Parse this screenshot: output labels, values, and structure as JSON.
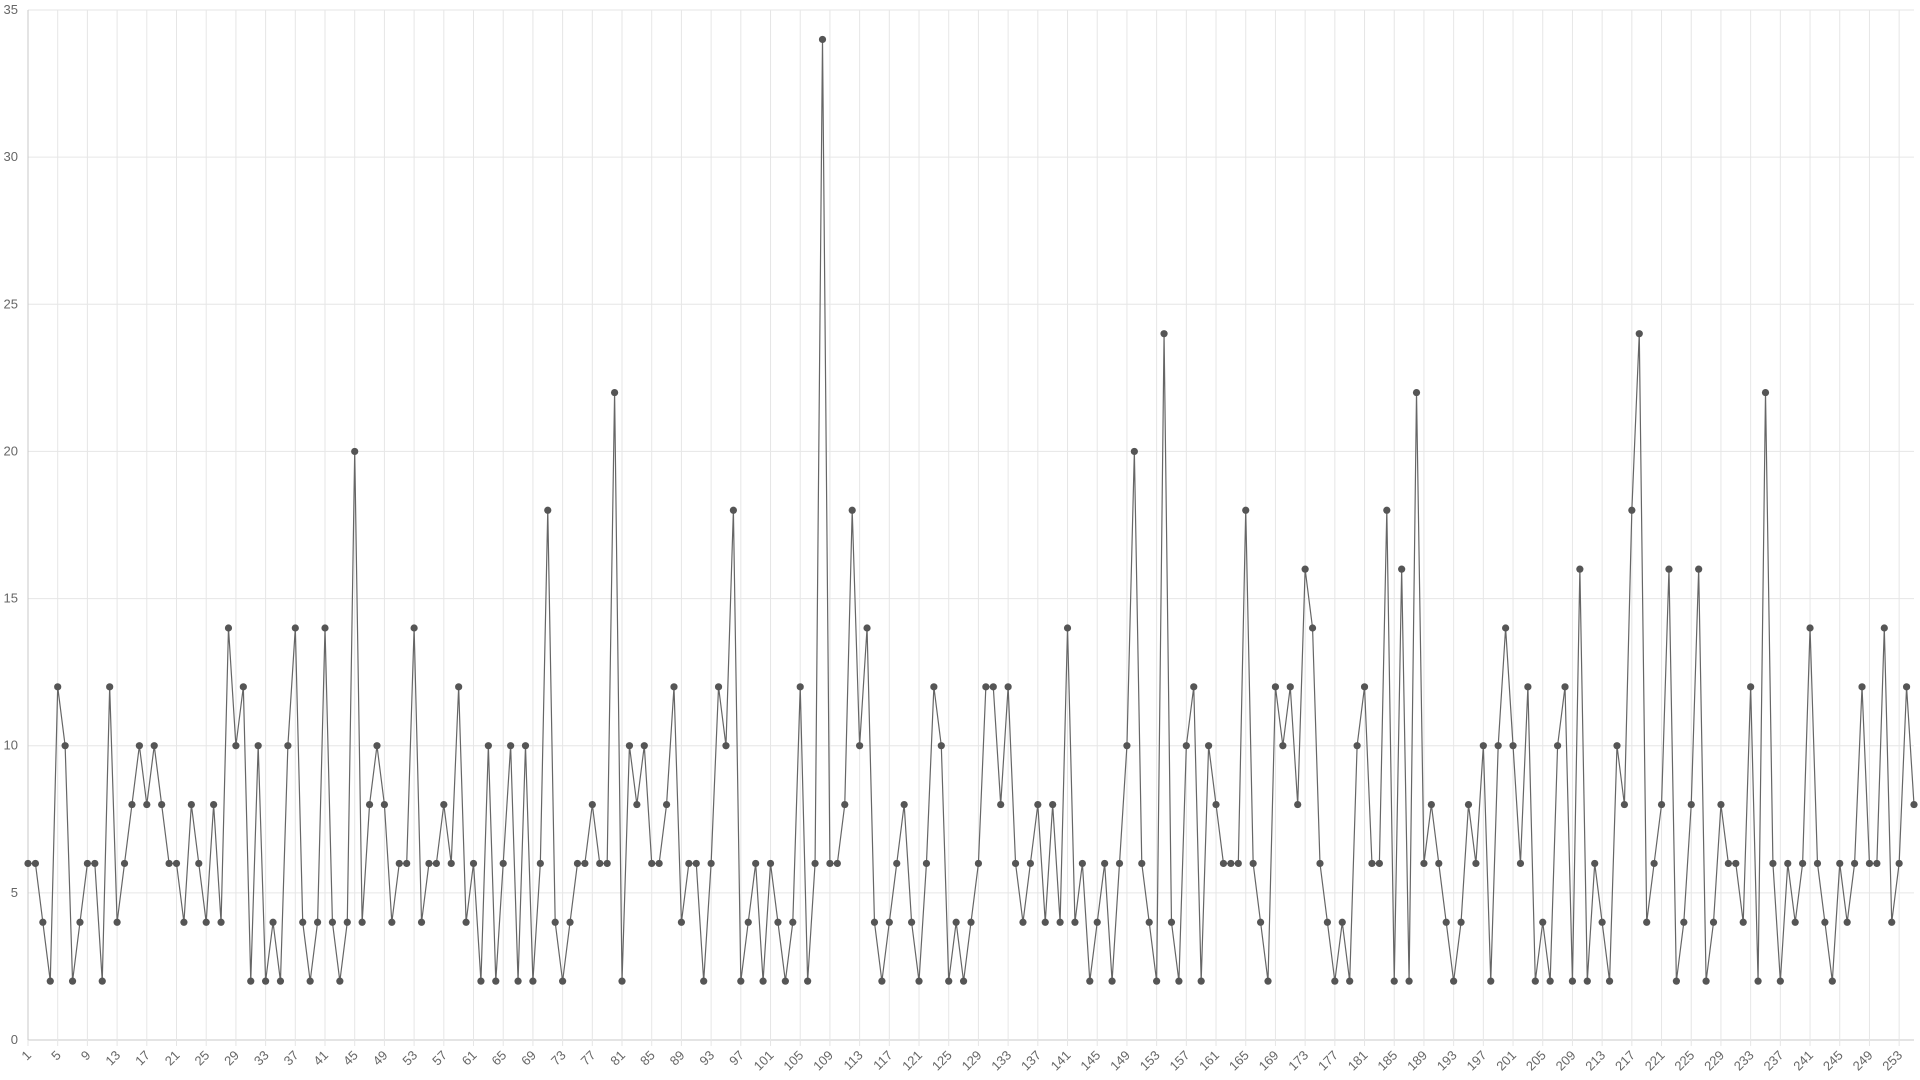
{
  "chart_data": {
    "type": "line",
    "categories": [
      "1",
      null,
      null,
      null,
      "5",
      null,
      null,
      null,
      "9",
      null,
      null,
      null,
      "13",
      null,
      null,
      null,
      "17",
      null,
      null,
      null,
      "21",
      null,
      null,
      null,
      "25",
      null,
      null,
      null,
      "29",
      null,
      null,
      null,
      "33",
      null,
      null,
      null,
      "37",
      null,
      null,
      null,
      "41",
      null,
      null,
      null,
      "45",
      null,
      null,
      null,
      "49",
      null,
      null,
      null,
      "53",
      null,
      null,
      null,
      "57",
      null,
      null,
      null,
      "61",
      null,
      null,
      null,
      "65",
      null,
      null,
      null,
      "69",
      null,
      null,
      null,
      "73",
      null,
      null,
      null,
      "77",
      null,
      null,
      null,
      "81",
      null,
      null,
      null,
      "85",
      null,
      null,
      null,
      "89",
      null,
      null,
      null,
      "93",
      null,
      null,
      null,
      "97",
      null,
      null,
      null,
      "101",
      null,
      null,
      null,
      "105",
      null,
      null,
      null,
      "109",
      null,
      null,
      null,
      "113",
      null,
      null,
      null,
      "117",
      null,
      null,
      null,
      "121",
      null,
      null,
      null,
      "125",
      null,
      null,
      null,
      "129",
      null,
      null,
      null,
      "133",
      null,
      null,
      null,
      "137",
      null,
      null,
      null,
      "141",
      null,
      null,
      null,
      "145",
      null,
      null,
      null,
      "149",
      null,
      null,
      null,
      "153",
      null,
      null,
      null,
      "157",
      null,
      null,
      null,
      "161",
      null,
      null,
      null,
      "165",
      null,
      null,
      null,
      "169",
      null,
      null,
      null,
      "173",
      null,
      null,
      null,
      "177",
      null,
      null,
      null,
      "181",
      null,
      null,
      null,
      "185",
      null,
      null,
      null,
      "189",
      null,
      null,
      null,
      "193",
      null,
      null,
      null,
      "197",
      null,
      null,
      null,
      "201",
      null,
      null,
      null,
      "205",
      null,
      null,
      null,
      "209",
      null,
      null,
      null,
      "213",
      null,
      null,
      null,
      "217",
      null,
      null,
      null,
      "221",
      null,
      null,
      null,
      "225",
      null,
      null,
      null,
      "229",
      null,
      null,
      null,
      "233",
      null,
      null,
      null,
      "237",
      null,
      null,
      null,
      "241",
      null,
      null,
      null,
      "245",
      null,
      null,
      null,
      "249",
      null,
      null,
      null,
      "253",
      null,
      null
    ],
    "values": [
      6,
      6,
      4,
      2,
      12,
      10,
      2,
      4,
      6,
      6,
      2,
      12,
      4,
      6,
      8,
      10,
      8,
      10,
      8,
      6,
      6,
      4,
      8,
      6,
      4,
      8,
      4,
      14,
      10,
      12,
      2,
      10,
      2,
      4,
      2,
      10,
      14,
      4,
      2,
      4,
      14,
      4,
      2,
      4,
      20,
      4,
      8,
      10,
      8,
      4,
      6,
      6,
      14,
      4,
      6,
      6,
      8,
      6,
      12,
      4,
      6,
      2,
      10,
      2,
      6,
      10,
      2,
      10,
      2,
      6,
      18,
      4,
      2,
      4,
      6,
      6,
      8,
      6,
      6,
      22,
      2,
      10,
      8,
      10,
      6,
      6,
      8,
      12,
      4,
      6,
      6,
      2,
      6,
      12,
      10,
      18,
      2,
      4,
      6,
      2,
      6,
      4,
      2,
      4,
      12,
      2,
      6,
      34,
      6,
      6,
      8,
      18,
      10,
      14,
      4,
      2,
      4,
      6,
      8,
      4,
      2,
      6,
      12,
      10,
      2,
      4,
      2,
      4,
      6,
      12,
      12,
      8,
      12,
      6,
      4,
      6,
      8,
      4,
      8,
      4,
      14,
      4,
      6,
      2,
      4,
      6,
      2,
      6,
      10,
      20,
      6,
      4,
      2,
      24,
      4,
      2,
      10,
      12,
      2,
      10,
      8,
      6,
      6,
      6,
      18,
      6,
      4,
      2,
      12,
      10,
      12,
      8,
      16,
      14,
      6,
      4,
      2,
      4,
      2,
      10,
      12,
      6,
      6,
      18,
      2,
      16,
      2,
      22,
      6,
      8,
      6,
      4,
      2,
      4,
      8,
      6,
      10,
      2,
      10,
      14,
      10,
      6,
      12,
      2,
      4,
      2,
      10,
      12,
      2,
      16,
      2,
      6,
      4,
      2,
      10,
      8,
      18,
      24,
      4,
      6,
      8,
      16,
      2,
      4,
      8,
      16,
      2,
      4,
      8,
      6,
      6,
      4,
      12,
      2,
      22,
      6,
      2,
      6,
      4,
      6,
      14,
      6,
      4,
      2,
      6,
      4,
      6,
      12,
      6,
      6,
      14,
      4,
      6,
      12,
      8
    ],
    "color": "#666666",
    "ylim": [
      0,
      35
    ],
    "yticks": [
      0,
      5,
      10,
      15,
      20,
      25,
      30,
      35
    ],
    "grid": true
  }
}
